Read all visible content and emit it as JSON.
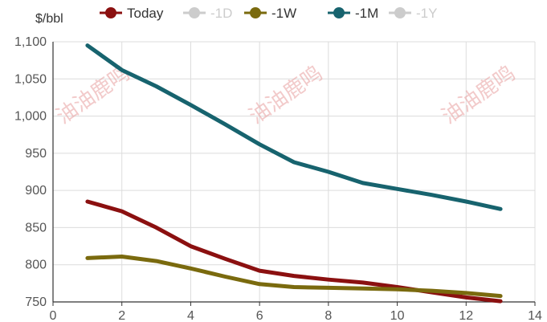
{
  "chart_data": {
    "type": "line",
    "ylabel": "$/bbl",
    "xlim": [
      0,
      14
    ],
    "ylim": [
      750,
      1100
    ],
    "x_ticks": [
      "0",
      "2",
      "4",
      "6",
      "8",
      "10",
      "12",
      "14"
    ],
    "y_ticks": [
      "750",
      "800",
      "850",
      "900",
      "950",
      "1,000",
      "1,050",
      "1,100"
    ],
    "grid": true,
    "legend_position": "top",
    "series": [
      {
        "name": "Today",
        "color": "#8b1010",
        "visible": true,
        "x": [
          1,
          2,
          3,
          4,
          5,
          6,
          7,
          8,
          9,
          10,
          11,
          12,
          13
        ],
        "y": [
          885,
          872,
          850,
          825,
          808,
          792,
          785,
          780,
          776,
          770,
          763,
          756,
          751
        ]
      },
      {
        "name": "-1D",
        "color": "#cccccc",
        "visible": false,
        "x": [],
        "y": []
      },
      {
        "name": "-1W",
        "color": "#7a6a0e",
        "visible": true,
        "x": [
          1,
          2,
          3,
          4,
          5,
          6,
          7,
          8,
          9,
          10,
          11,
          12,
          13
        ],
        "y": [
          809,
          811,
          805,
          795,
          784,
          774,
          770,
          769,
          768,
          767,
          765,
          762,
          758
        ]
      },
      {
        "name": "-1M",
        "color": "#17636e",
        "visible": true,
        "x": [
          1,
          2,
          3,
          4,
          5,
          6,
          7,
          8,
          9,
          10,
          11,
          12,
          13
        ],
        "y": [
          1095,
          1062,
          1040,
          1015,
          989,
          962,
          938,
          925,
          910,
          902,
          894,
          885,
          875
        ]
      },
      {
        "name": "-1Y",
        "color": "#cccccc",
        "visible": false,
        "x": [],
        "y": []
      }
    ]
  },
  "watermark": "油油鹿鸣"
}
